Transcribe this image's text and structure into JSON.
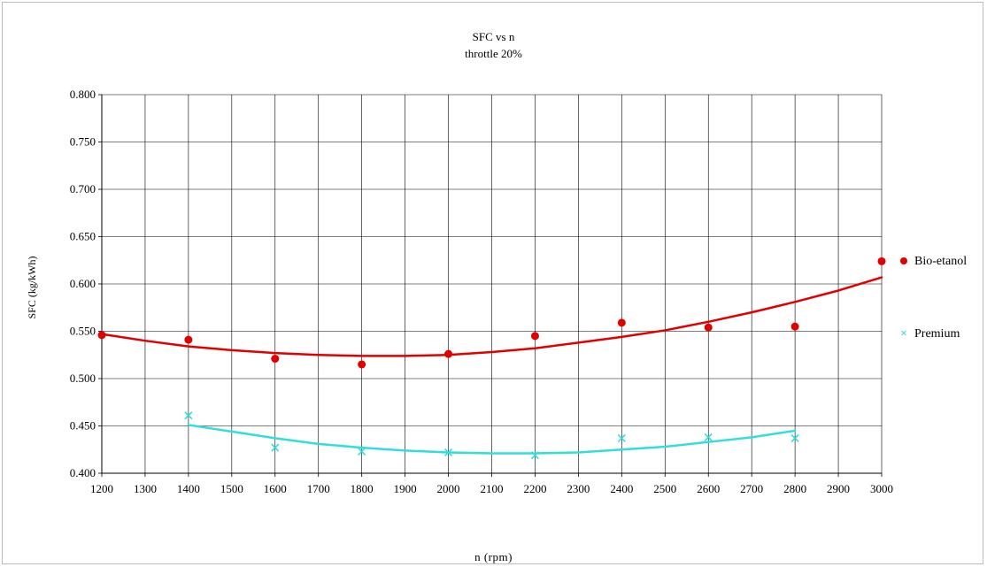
{
  "chart_data": {
    "type": "scatter",
    "title": "SFC vs n",
    "subtitle": "throttle 20%",
    "xlabel": "n  (rpm)",
    "ylabel": "SFC (kg/kWh)",
    "xlim": [
      1200,
      3000
    ],
    "ylim": [
      0.4,
      0.8
    ],
    "xticks": [
      "1200",
      "1300",
      "1400",
      "1500",
      "1600",
      "1700",
      "1800",
      "1900",
      "2000",
      "2100",
      "2200",
      "2300",
      "2400",
      "2500",
      "2600",
      "2700",
      "2800",
      "2900",
      "3000"
    ],
    "yticks": [
      "0.800",
      "0.750",
      "0.700",
      "0.650",
      "0.600",
      "0.550",
      "0.500",
      "0.450",
      "0.400"
    ],
    "grid": true,
    "legend_position": "right",
    "series": [
      {
        "name": "Bio-etanol",
        "marker": "circle",
        "color": "#e00000",
        "points": [
          {
            "x": 1200,
            "y": 0.546
          },
          {
            "x": 1400,
            "y": 0.541
          },
          {
            "x": 1600,
            "y": 0.521
          },
          {
            "x": 1800,
            "y": 0.515
          },
          {
            "x": 2000,
            "y": 0.526
          },
          {
            "x": 2200,
            "y": 0.545
          },
          {
            "x": 2400,
            "y": 0.559
          },
          {
            "x": 2600,
            "y": 0.554
          },
          {
            "x": 2800,
            "y": 0.555
          },
          {
            "x": 3000,
            "y": 0.624
          }
        ],
        "trendline": {
          "x": [
            1200,
            1300,
            1400,
            1500,
            1600,
            1700,
            1800,
            1900,
            2000,
            2100,
            2200,
            2300,
            2400,
            2500,
            2600,
            2700,
            2800,
            2900,
            3000
          ],
          "y": [
            0.547,
            0.54,
            0.534,
            0.53,
            0.527,
            0.525,
            0.524,
            0.524,
            0.525,
            0.528,
            0.532,
            0.538,
            0.544,
            0.551,
            0.56,
            0.57,
            0.581,
            0.593,
            0.607
          ]
        }
      },
      {
        "name": "Premium",
        "marker": "x",
        "color": "#33dddd",
        "points": [
          {
            "x": 1400,
            "y": 0.461
          },
          {
            "x": 1600,
            "y": 0.427
          },
          {
            "x": 1800,
            "y": 0.423
          },
          {
            "x": 2000,
            "y": 0.422
          },
          {
            "x": 2200,
            "y": 0.419
          },
          {
            "x": 2400,
            "y": 0.437
          },
          {
            "x": 2600,
            "y": 0.438
          },
          {
            "x": 2800,
            "y": 0.437
          }
        ],
        "trendline": {
          "x": [
            1400,
            1500,
            1600,
            1700,
            1800,
            1900,
            2000,
            2100,
            2200,
            2300,
            2400,
            2500,
            2600,
            2700,
            2800
          ],
          "y": [
            0.451,
            0.444,
            0.437,
            0.431,
            0.427,
            0.424,
            0.422,
            0.421,
            0.421,
            0.422,
            0.425,
            0.428,
            0.433,
            0.438,
            0.445
          ]
        }
      }
    ]
  }
}
